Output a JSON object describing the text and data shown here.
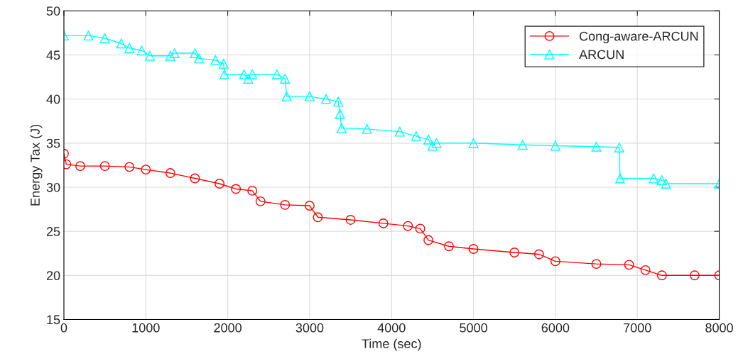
{
  "chart_data": {
    "type": "line",
    "xlabel": "Time (sec)",
    "ylabel": "Energy Tax (J)",
    "xlim": [
      0,
      8000
    ],
    "xticks": [
      0,
      1000,
      2000,
      3000,
      4000,
      5000,
      6000,
      7000,
      8000
    ],
    "ylim": [
      15,
      50
    ],
    "yticks": [
      15,
      20,
      25,
      30,
      35,
      40,
      45,
      50
    ],
    "grid": true,
    "legend": "top right",
    "series": [
      {
        "name": "Cong-aware-ARCUN",
        "color": "#ff0000",
        "marker": "circle",
        "x": [
          0,
          30,
          200,
          500,
          800,
          1000,
          1300,
          1600,
          1900,
          2100,
          2300,
          2400,
          2700,
          3000,
          3100,
          3500,
          3900,
          4200,
          4350,
          4450,
          4700,
          5000,
          5500,
          5800,
          6000,
          6500,
          6900,
          7100,
          7300,
          7700,
          8000
        ],
        "values": [
          33.8,
          32.6,
          32.4,
          32.4,
          32.3,
          32.0,
          31.6,
          31.0,
          30.4,
          29.8,
          29.6,
          28.4,
          28.0,
          27.9,
          26.6,
          26.3,
          25.9,
          25.6,
          25.3,
          24.0,
          23.3,
          23.0,
          22.6,
          22.4,
          21.6,
          21.3,
          21.2,
          20.6,
          20.0,
          20.0,
          20.0
        ]
      },
      {
        "name": "ARCUN",
        "color": "#00ffff",
        "marker": "triangle",
        "x": [
          0,
          300,
          500,
          700,
          800,
          950,
          1050,
          1300,
          1350,
          1600,
          1650,
          1850,
          1950,
          1960,
          2200,
          2250,
          2300,
          2600,
          2700,
          2720,
          3000,
          3200,
          3350,
          3370,
          3390,
          3700,
          4100,
          4300,
          4450,
          4500,
          4550,
          5000,
          5600,
          6000,
          6500,
          6780,
          6790,
          7200,
          7300,
          7350,
          8000
        ],
        "values": [
          47.2,
          47.2,
          46.9,
          46.3,
          45.8,
          45.5,
          44.9,
          44.9,
          45.2,
          45.2,
          44.6,
          44.4,
          44.0,
          42.8,
          42.8,
          42.3,
          42.8,
          42.8,
          42.3,
          40.3,
          40.3,
          40.0,
          39.7,
          38.3,
          36.7,
          36.6,
          36.3,
          35.8,
          35.4,
          34.7,
          35.0,
          35.0,
          34.8,
          34.7,
          34.6,
          34.5,
          31.0,
          31.0,
          30.8,
          30.4,
          30.4
        ]
      }
    ]
  }
}
